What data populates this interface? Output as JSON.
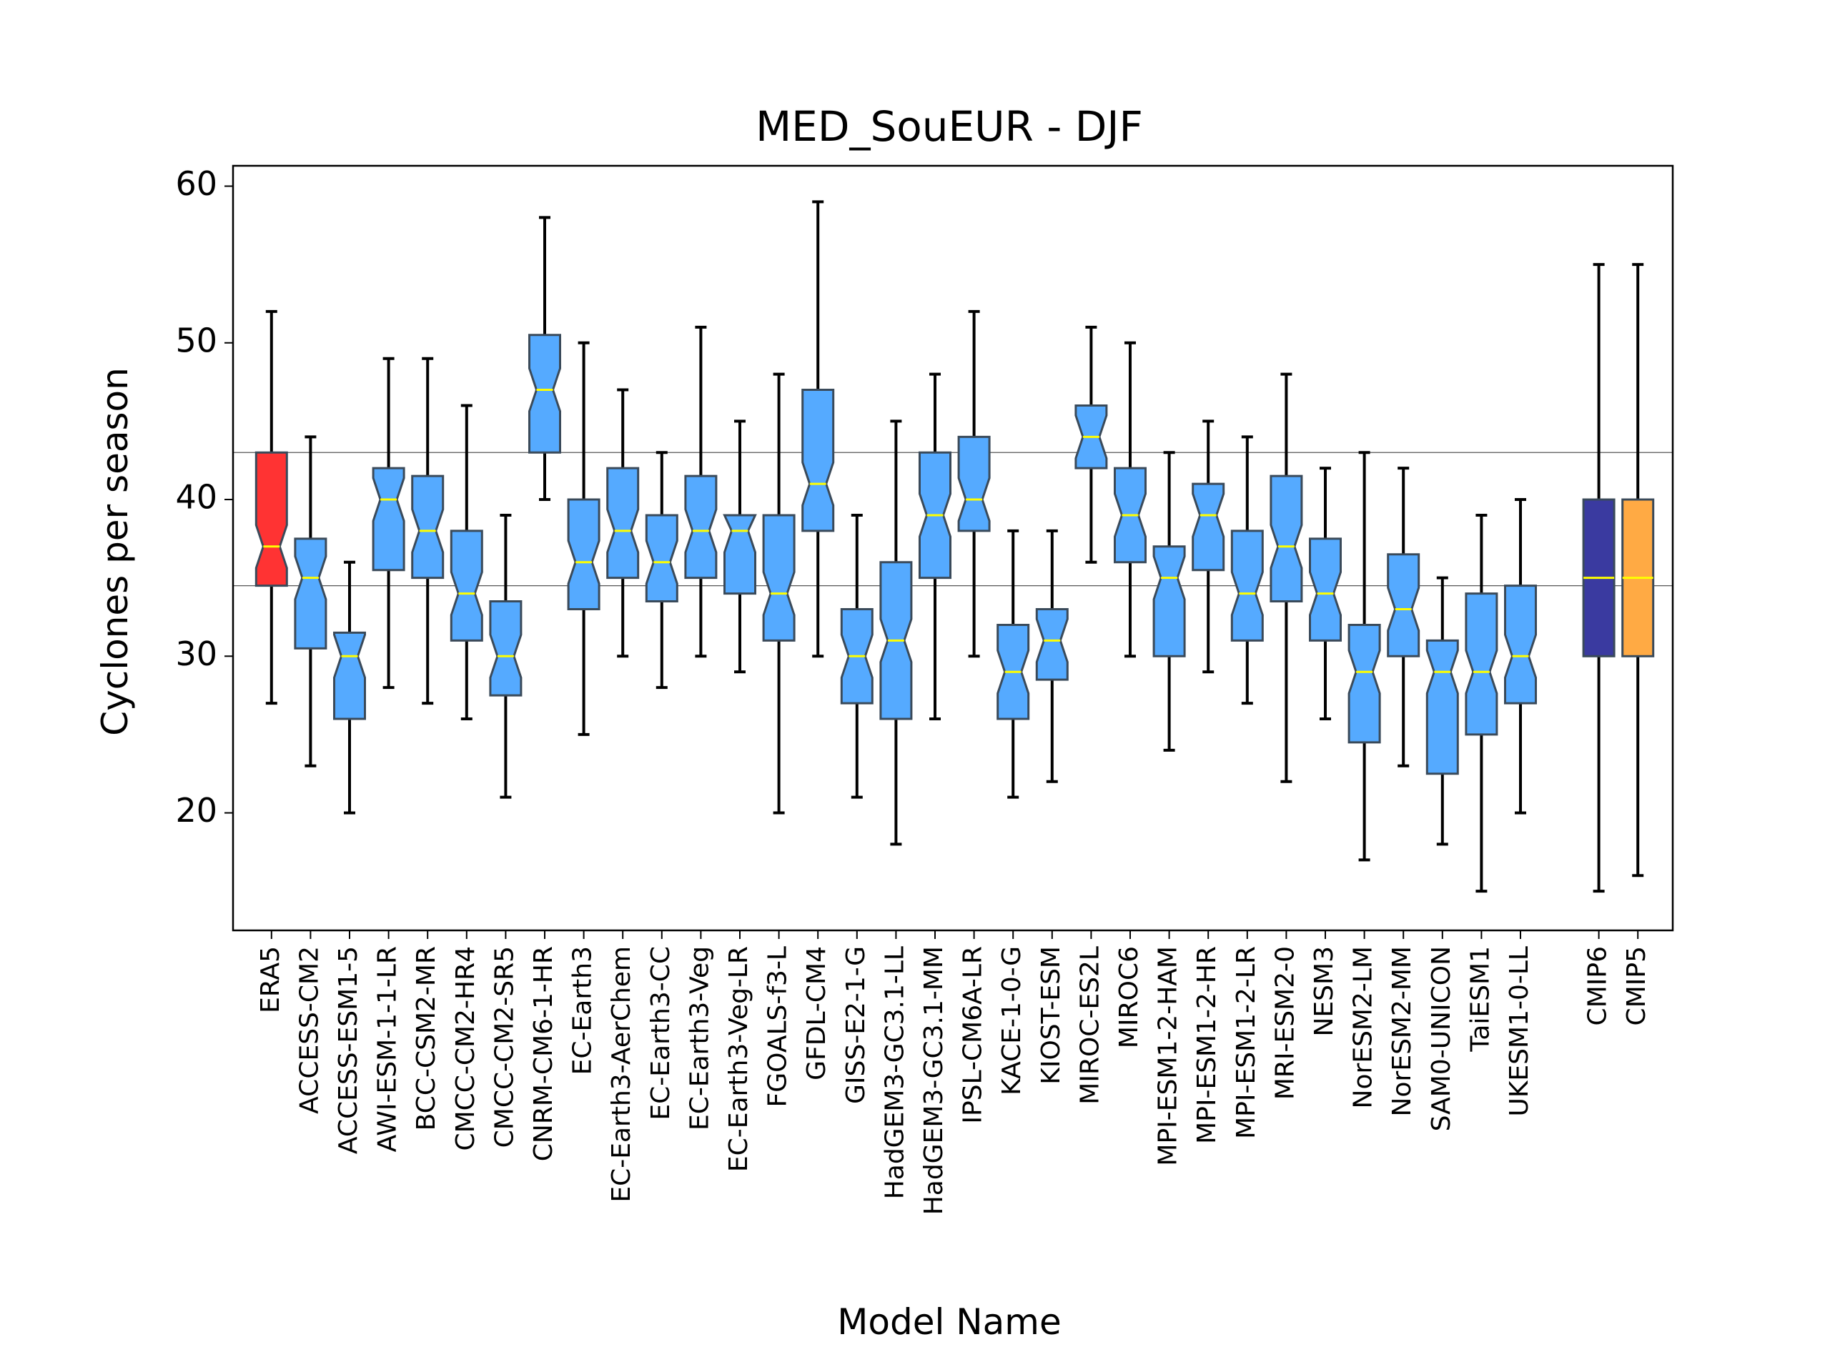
{
  "chart_data": {
    "type": "boxplot",
    "title": "MED_SouEUR - DJF",
    "xlabel": "Model Name",
    "ylabel": "Cyclones per season",
    "ylim": [
      12.5,
      61.3
    ],
    "yticks": [
      20,
      30,
      40,
      50,
      60
    ],
    "grid": false,
    "reference_lines": [
      34.5,
      43
    ],
    "colors": {
      "reanalysis": "#ff3333",
      "model": "#55aaff",
      "cmip6": "#3a3aa0",
      "cmip5": "#ffaa44",
      "median": "#ffff00",
      "edge": "#3a4a5a",
      "whisker": "#000000",
      "ref_line": "#555555"
    },
    "boxes": [
      {
        "label": "ERA5",
        "whislo": 27,
        "q1": 34.5,
        "med": 37,
        "q3": 43,
        "whishi": 52,
        "color": "reanalysis"
      },
      {
        "label": "ACCESS-CM2",
        "whislo": 23,
        "q1": 30.5,
        "med": 35,
        "q3": 37.5,
        "whishi": 44,
        "color": "model"
      },
      {
        "label": "ACCESS-ESM1-5",
        "whislo": 20,
        "q1": 26,
        "med": 30,
        "q3": 31.5,
        "whishi": 36,
        "color": "model"
      },
      {
        "label": "AWI-ESM-1-1-LR",
        "whislo": 28,
        "q1": 35.5,
        "med": 40,
        "q3": 42,
        "whishi": 49,
        "color": "model"
      },
      {
        "label": "BCC-CSM2-MR",
        "whislo": 27,
        "q1": 35,
        "med": 38,
        "q3": 41.5,
        "whishi": 49,
        "color": "model"
      },
      {
        "label": "CMCC-CM2-HR4",
        "whislo": 26,
        "q1": 31,
        "med": 34,
        "q3": 38,
        "whishi": 46,
        "color": "model"
      },
      {
        "label": "CMCC-CM2-SR5",
        "whislo": 21,
        "q1": 27.5,
        "med": 30,
        "q3": 33.5,
        "whishi": 39,
        "color": "model"
      },
      {
        "label": "CNRM-CM6-1-HR",
        "whislo": 40,
        "q1": 43,
        "med": 47,
        "q3": 50.5,
        "whishi": 58,
        "color": "model"
      },
      {
        "label": "EC-Earth3",
        "whislo": 25,
        "q1": 33,
        "med": 36,
        "q3": 40,
        "whishi": 50,
        "color": "model"
      },
      {
        "label": "EC-Earth3-AerChem",
        "whislo": 30,
        "q1": 35,
        "med": 38,
        "q3": 42,
        "whishi": 47,
        "color": "model"
      },
      {
        "label": "EC-Earth3-CC",
        "whislo": 28,
        "q1": 33.5,
        "med": 36,
        "q3": 39,
        "whishi": 43,
        "color": "model"
      },
      {
        "label": "EC-Earth3-Veg",
        "whislo": 30,
        "q1": 35,
        "med": 38,
        "q3": 41.5,
        "whishi": 51,
        "color": "model"
      },
      {
        "label": "EC-Earth3-Veg-LR",
        "whislo": 29,
        "q1": 34,
        "med": 38,
        "q3": 39,
        "whishi": 45,
        "color": "model"
      },
      {
        "label": "FGOALS-f3-L",
        "whislo": 20,
        "q1": 31,
        "med": 34,
        "q3": 39,
        "whishi": 48,
        "color": "model"
      },
      {
        "label": "GFDL-CM4",
        "whislo": 30,
        "q1": 38,
        "med": 41,
        "q3": 47,
        "whishi": 59,
        "color": "model"
      },
      {
        "label": "GISS-E2-1-G",
        "whislo": 21,
        "q1": 27,
        "med": 30,
        "q3": 33,
        "whishi": 39,
        "color": "model"
      },
      {
        "label": "HadGEM3-GC3.1-LL",
        "whislo": 18,
        "q1": 26,
        "med": 31,
        "q3": 36,
        "whishi": 45,
        "color": "model"
      },
      {
        "label": "HadGEM3-GC3.1-MM",
        "whislo": 26,
        "q1": 35,
        "med": 39,
        "q3": 43,
        "whishi": 48,
        "color": "model"
      },
      {
        "label": "IPSL-CM6A-LR",
        "whislo": 30,
        "q1": 38,
        "med": 40,
        "q3": 44,
        "whishi": 52,
        "color": "model"
      },
      {
        "label": "KACE-1-0-G",
        "whislo": 21,
        "q1": 26,
        "med": 29,
        "q3": 32,
        "whishi": 38,
        "color": "model"
      },
      {
        "label": "KIOST-ESM",
        "whislo": 22,
        "q1": 28.5,
        "med": 31,
        "q3": 33,
        "whishi": 38,
        "color": "model"
      },
      {
        "label": "MIROC-ES2L",
        "whislo": 36,
        "q1": 42,
        "med": 44,
        "q3": 46,
        "whishi": 51,
        "color": "model"
      },
      {
        "label": "MIROC6",
        "whislo": 30,
        "q1": 36,
        "med": 39,
        "q3": 42,
        "whishi": 50,
        "color": "model"
      },
      {
        "label": "MPI-ESM1-2-HAM",
        "whislo": 24,
        "q1": 30,
        "med": 35,
        "q3": 37,
        "whishi": 43,
        "color": "model"
      },
      {
        "label": "MPI-ESM1-2-HR",
        "whislo": 29,
        "q1": 35.5,
        "med": 39,
        "q3": 41,
        "whishi": 45,
        "color": "model"
      },
      {
        "label": "MPI-ESM1-2-LR",
        "whislo": 27,
        "q1": 31,
        "med": 34,
        "q3": 38,
        "whishi": 44,
        "color": "model"
      },
      {
        "label": "MRI-ESM2-0",
        "whislo": 22,
        "q1": 33.5,
        "med": 37,
        "q3": 41.5,
        "whishi": 48,
        "color": "model"
      },
      {
        "label": "NESM3",
        "whislo": 26,
        "q1": 31,
        "med": 34,
        "q3": 37.5,
        "whishi": 42,
        "color": "model"
      },
      {
        "label": "NorESM2-LM",
        "whislo": 17,
        "q1": 24.5,
        "med": 29,
        "q3": 32,
        "whishi": 43,
        "color": "model"
      },
      {
        "label": "NorESM2-MM",
        "whislo": 23,
        "q1": 30,
        "med": 33,
        "q3": 36.5,
        "whishi": 42,
        "color": "model"
      },
      {
        "label": "SAM0-UNICON",
        "whislo": 18,
        "q1": 22.5,
        "med": 29,
        "q3": 31,
        "whishi": 35,
        "color": "model"
      },
      {
        "label": "TaiESM1",
        "whislo": 15,
        "q1": 25,
        "med": 29,
        "q3": 34,
        "whishi": 39,
        "color": "model"
      },
      {
        "label": "UKESM1-0-LL",
        "whislo": 20,
        "q1": 27,
        "med": 30,
        "q3": 34.5,
        "whishi": 40,
        "color": "model"
      },
      {
        "label": "CMIP6",
        "whislo": 15,
        "q1": 30,
        "med": 35,
        "q3": 40,
        "whishi": 55,
        "color": "cmip6",
        "notched": false
      },
      {
        "label": "CMIP5",
        "whislo": 16,
        "q1": 30,
        "med": 35,
        "q3": 40,
        "whishi": 55,
        "color": "cmip5",
        "notched": false
      }
    ]
  }
}
